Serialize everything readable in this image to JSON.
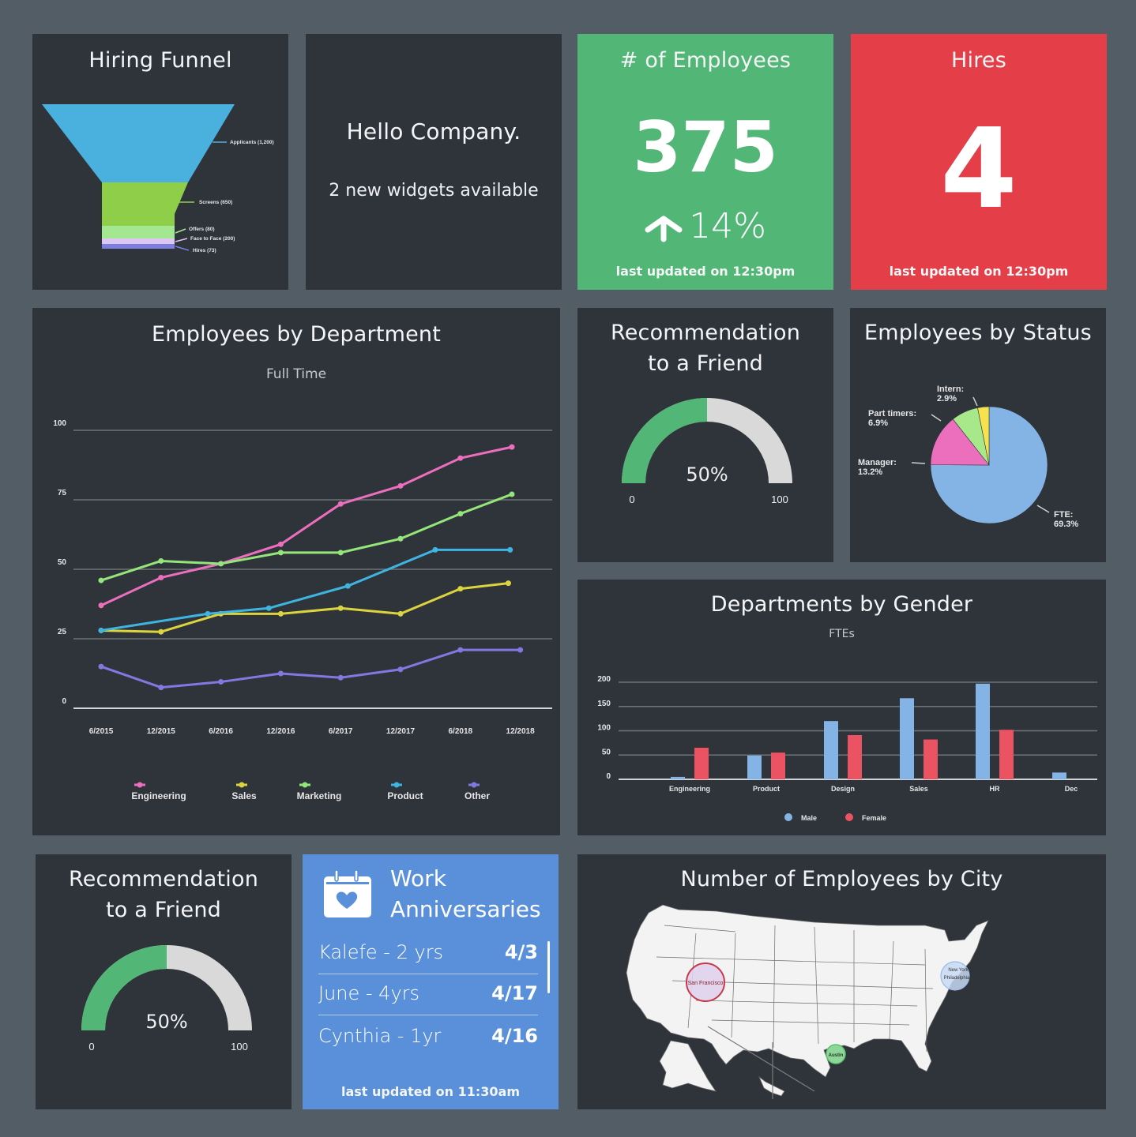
{
  "colors": {
    "background": "#535d66",
    "panel": "#2f343b",
    "green": "#52b776",
    "red": "#e43f49",
    "blue": "#5a90d9",
    "gauge_track": "#d9d9d9"
  },
  "hiring_funnel": {
    "title": "Hiring Funnel",
    "stages": [
      {
        "label": "Applicants (1,200)",
        "value": 1200,
        "color": "#4ab1de"
      },
      {
        "label": "Screens  (650)",
        "value": 650,
        "color": "#8fce48"
      },
      {
        "label": "Offers  (80)",
        "value": 80,
        "color": "#a3e890"
      },
      {
        "label": "Face to Face  (200)",
        "value": 200,
        "color": "#dcc7f3"
      },
      {
        "label": "Hires  (73)",
        "value": 73,
        "color": "#7c7ee0"
      }
    ]
  },
  "hello": {
    "title": "Hello Company.",
    "subtitle": "2 new widgets available"
  },
  "employees_kpi": {
    "title": "# of Employees",
    "value": "375",
    "change": "14%",
    "change_direction": "up",
    "updated": "last updated on 12:30pm"
  },
  "hires_kpi": {
    "title": "Hires",
    "value": "4",
    "updated": "last updated on 12:30pm"
  },
  "recommendation_top": {
    "title_line1": "Recommendation",
    "title_line2": "to a Friend",
    "value_label": "50%",
    "value": 50,
    "min_label": "0",
    "max_label": "100"
  },
  "recommendation_bottom": {
    "title_line1": "Recommendation",
    "title_line2": "to a Friend",
    "value_label": "50%",
    "value": 50,
    "min_label": "0",
    "max_label": "100"
  },
  "work_anniversaries": {
    "title_line1": "Work",
    "title_line2": "Anniversaries",
    "items": [
      {
        "name": "Kalefe - 2 yrs",
        "date": "4/3"
      },
      {
        "name": "June - 4yrs",
        "date": "4/17"
      },
      {
        "name": "Cynthia - 1yr",
        "date": "4/16"
      }
    ],
    "updated": "last updated on 11:30am"
  },
  "city_map": {
    "title": "Number of Employees by City",
    "cities": [
      {
        "name": "San Francisco",
        "color": "#e0d3ee",
        "stroke": "#c8384a"
      },
      {
        "name": "New York",
        "color": "#c7d9f3",
        "stroke": "#9bb8e6"
      },
      {
        "name": "Philadelphia",
        "color": "#c7d9f3",
        "stroke": "#9bb8e6"
      },
      {
        "name": "Austin",
        "color": "#8fd69a",
        "stroke": "#5bc36c"
      }
    ]
  },
  "chart_data": [
    {
      "id": "employees_by_department",
      "type": "line",
      "title": "Employees by Department",
      "subtitle": "Full Time",
      "xlabel": "",
      "ylabel": "",
      "categories": [
        "6/2015",
        "12/2015",
        "6/2016",
        "12/2016",
        "6/2017",
        "12/2017",
        "6/2018",
        "12/2018"
      ],
      "ylim": [
        0,
        100
      ],
      "yticks": [
        0,
        25,
        50,
        75,
        100
      ],
      "grid": true,
      "legend": "bottom",
      "series": [
        {
          "name": "Engineering",
          "color": "#ec6fbd",
          "x": [
            0,
            1,
            2,
            3,
            4,
            5,
            6,
            6.86
          ],
          "values": [
            37,
            47,
            52,
            59,
            73.5,
            80,
            90,
            94
          ]
        },
        {
          "name": "Sales",
          "color": "#dcd43f",
          "x": [
            0,
            1,
            2,
            3,
            4,
            5,
            6,
            6.8
          ],
          "values": [
            28,
            27.5,
            34,
            34,
            36,
            34,
            43,
            45
          ]
        },
        {
          "name": "Marketing",
          "color": "#95e67a",
          "x": [
            0,
            1,
            2,
            3,
            4,
            5,
            6,
            6.86
          ],
          "values": [
            46,
            53,
            52,
            56,
            56,
            61,
            70,
            77
          ]
        },
        {
          "name": "Product",
          "color": "#3eb5e0",
          "x": [
            0,
            1.78,
            2.8,
            4.12,
            5.58,
            6.83
          ],
          "values": [
            28,
            34,
            36,
            44,
            57,
            57
          ]
        },
        {
          "name": "Other",
          "color": "#8079e0",
          "x": [
            0,
            1,
            2,
            3,
            4,
            5,
            6,
            7
          ],
          "values": [
            15,
            7.5,
            9.5,
            12.5,
            11,
            14,
            21,
            21
          ]
        }
      ]
    },
    {
      "id": "employees_by_status",
      "type": "pie",
      "title": "Employees by Status",
      "slices": [
        {
          "label": "FTE:",
          "value": 69.3,
          "display": "69.3%",
          "color": "#84b3e6"
        },
        {
          "label": "Manager:",
          "value": 13.2,
          "display": "13.2%",
          "color": "#ec6fbd"
        },
        {
          "label": "Part timers:",
          "value": 6.9,
          "display": "6.9%",
          "color": "#a6e88a"
        },
        {
          "label": "Intern:",
          "value": 2.9,
          "display": "2.9%",
          "color": "#f6e24f"
        }
      ]
    },
    {
      "id": "departments_by_gender",
      "type": "bar",
      "title": "Departments by Gender",
      "subtitle": "FTEs",
      "categories": [
        "Engineering",
        "Product",
        "Design",
        "Sales",
        "HR",
        "Dec"
      ],
      "ylim": [
        0,
        200
      ],
      "yticks": [
        0,
        50,
        100,
        150,
        200
      ],
      "grid": true,
      "legend": "bottom",
      "series": [
        {
          "name": "Male",
          "color": "#84b3e6",
          "values": [
            5,
            49,
            120,
            167,
            197,
            14
          ]
        },
        {
          "name": "Female",
          "color": "#ec5362",
          "values": [
            65,
            55,
            91,
            82,
            102,
            0
          ]
        }
      ]
    }
  ]
}
